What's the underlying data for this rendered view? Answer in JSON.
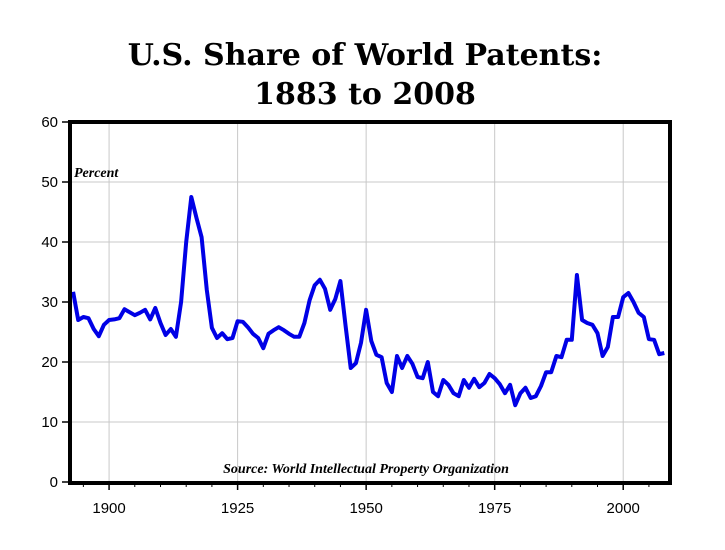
{
  "chart_data": {
    "type": "line",
    "title": "U.S. Share of World Patents:",
    "subtitle": "1883 to 2008",
    "ylabel": "Percent",
    "xlabel": "",
    "annotation": "Source: World Intellectual Property Organization",
    "xlim": [
      1892.4,
      2009.1
    ],
    "ylim": [
      0,
      60
    ],
    "x_ticks": [
      1900,
      1925,
      1950,
      1975,
      2000
    ],
    "y_ticks": [
      0,
      10,
      20,
      30,
      40,
      50,
      60
    ],
    "grid": true,
    "legend": "none",
    "line_color": "#0000e6",
    "x": [
      1893,
      1894,
      1895,
      1896,
      1897,
      1898,
      1899,
      1900,
      1901,
      1902,
      1903,
      1904,
      1905,
      1906,
      1907,
      1908,
      1909,
      1910,
      1911,
      1912,
      1913,
      1914,
      1915,
      1916,
      1917,
      1918,
      1919,
      1920,
      1921,
      1922,
      1923,
      1924,
      1925,
      1926,
      1927,
      1928,
      1929,
      1930,
      1931,
      1932,
      1933,
      1934,
      1935,
      1936,
      1937,
      1938,
      1939,
      1940,
      1941,
      1942,
      1943,
      1944,
      1945,
      1946,
      1947,
      1948,
      1949,
      1950,
      1951,
      1952,
      1953,
      1954,
      1955,
      1956,
      1957,
      1958,
      1959,
      1960,
      1961,
      1962,
      1963,
      1964,
      1965,
      1966,
      1967,
      1968,
      1969,
      1970,
      1971,
      1972,
      1973,
      1974,
      1975,
      1976,
      1977,
      1978,
      1979,
      1980,
      1981,
      1982,
      1983,
      1984,
      1985,
      1986,
      1987,
      1988,
      1989,
      1990,
      1991,
      1992,
      1993,
      1994,
      1995,
      1996,
      1997,
      1998,
      1999,
      2000,
      2001,
      2002,
      2003,
      2004,
      2005,
      2006,
      2007,
      2008
    ],
    "y": [
      31.7,
      27,
      27.5,
      27.3,
      25.5,
      24.3,
      26.2,
      27,
      27.1,
      27.3,
      28.8,
      28.3,
      27.8,
      28.2,
      28.7,
      27.1,
      29,
      26.5,
      24.5,
      25.5,
      24.2,
      30,
      40,
      47.5,
      44,
      40.8,
      32,
      25.7,
      24,
      24.8,
      23.8,
      24,
      26.8,
      26.7,
      25.8,
      24.7,
      24,
      22.3,
      24.7,
      25.3,
      25.8,
      25.3,
      24.7,
      24.2,
      24.2,
      26.5,
      30.3,
      32.8,
      33.7,
      32.2,
      28.7,
      30.5,
      33.5,
      26,
      19,
      19.8,
      23.2,
      28.7,
      23.5,
      21.2,
      20.8,
      16.5,
      15,
      21,
      19,
      21,
      19.7,
      17.5,
      17.3,
      20,
      15,
      14.3,
      17,
      16.2,
      14.8,
      14.3,
      17,
      15.7,
      17.2,
      15.8,
      16.5,
      18,
      17.3,
      16.3,
      14.8,
      16.2,
      12.8,
      14.8,
      15.7,
      14,
      14.3,
      16,
      18.3,
      18.3,
      21,
      20.8,
      23.7,
      23.7,
      34.5,
      27,
      26.5,
      26.2,
      24.8,
      21,
      22.5,
      27.5,
      27.5,
      30.8,
      31.5,
      30,
      28.2,
      27.5,
      23.8,
      23.7,
      21.3,
      21.5
    ]
  }
}
